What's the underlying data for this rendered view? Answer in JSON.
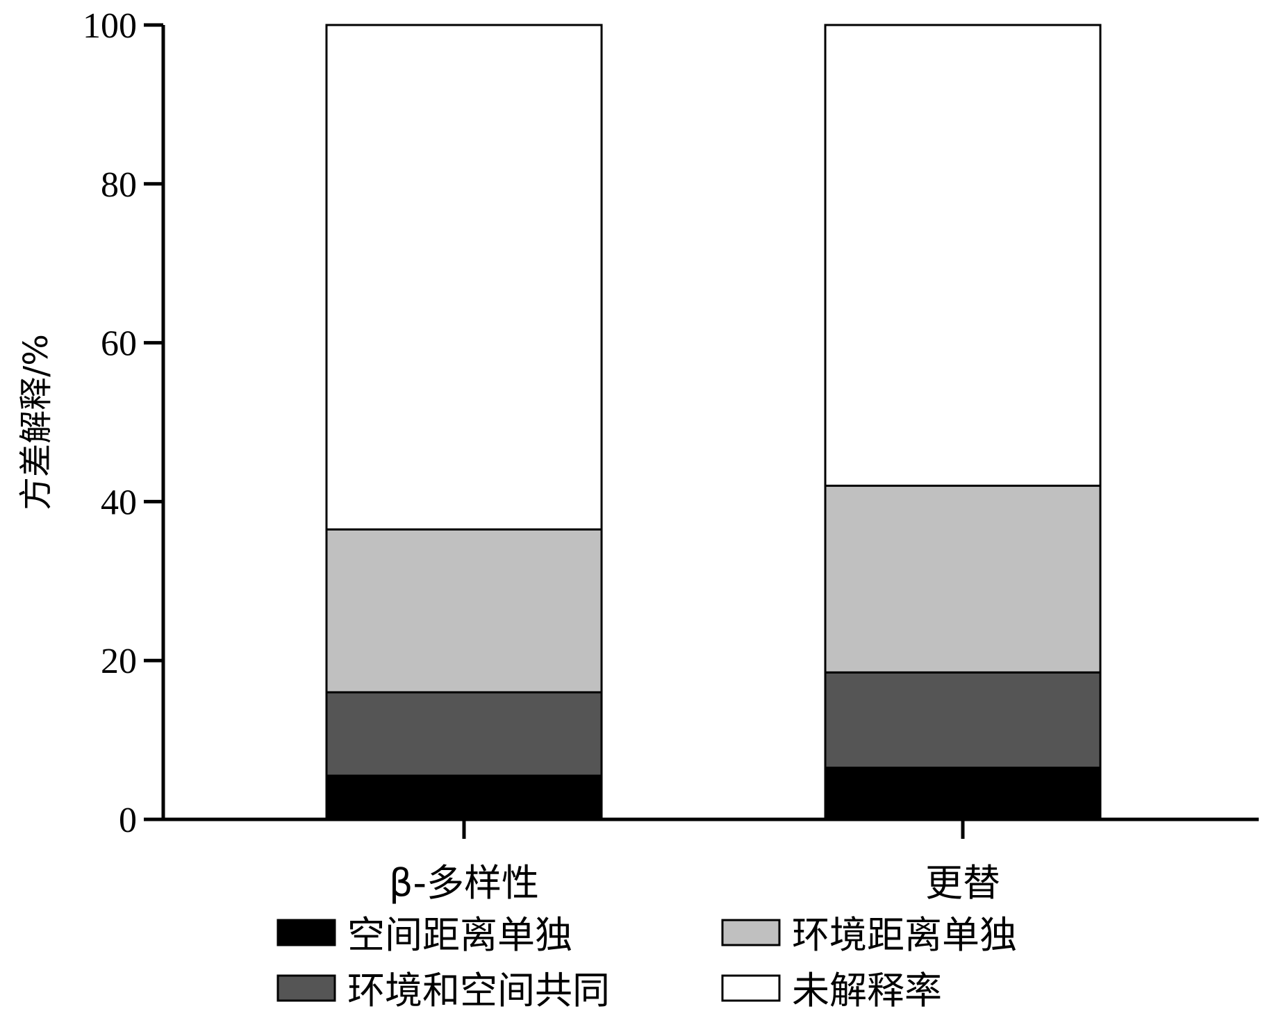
{
  "chart_data": {
    "type": "bar",
    "stacked": true,
    "categories": [
      "β-多样性",
      "更替"
    ],
    "series": [
      {
        "name": "空间距离单独",
        "color": "#000000",
        "values": [
          5.5,
          6.5
        ]
      },
      {
        "name": "环境和空间共同",
        "color": "#555555",
        "values": [
          10.5,
          12.0
        ]
      },
      {
        "name": "环境距离单独",
        "color": "#c0c0c0",
        "values": [
          20.5,
          23.5
        ]
      },
      {
        "name": "未解释率",
        "color": "#ffffff",
        "values": [
          63.5,
          58.0
        ]
      }
    ],
    "title": "",
    "xlabel": "",
    "ylabel": "方差解释/%",
    "ylim": [
      0,
      100
    ],
    "yticks": [
      0,
      20,
      40,
      60,
      80,
      100
    ],
    "grid": false,
    "legend_position": "bottom"
  }
}
